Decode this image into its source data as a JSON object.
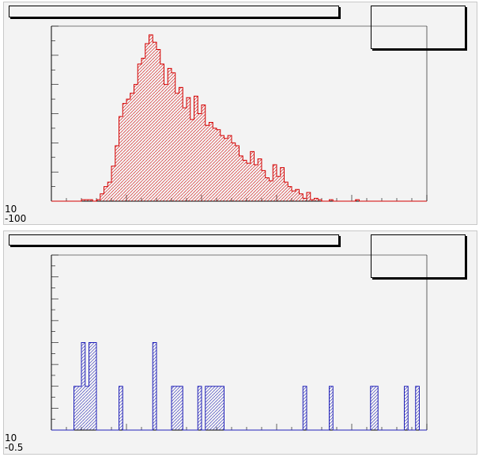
{
  "chart_data": [
    {
      "type": "histogram",
      "line_color": "#d40000",
      "fill": "hatched",
      "ylim": [
        0,
        120
      ],
      "bins": 100,
      "values": [
        0,
        0,
        0,
        0,
        0,
        0,
        0,
        0,
        1,
        1,
        1,
        0,
        1,
        5,
        10,
        13,
        24,
        38,
        58,
        67,
        70,
        74,
        80,
        94,
        98,
        108,
        114,
        109,
        104,
        94,
        80,
        91,
        88,
        74,
        78,
        64,
        71,
        56,
        72,
        60,
        66,
        52,
        54,
        50,
        49,
        45,
        43,
        45,
        40,
        38,
        31,
        28,
        26,
        34,
        25,
        29,
        21,
        16,
        14,
        25,
        17,
        23,
        13,
        10,
        7,
        8,
        5,
        2,
        6,
        1,
        2,
        1,
        0,
        0,
        1,
        0,
        0,
        0,
        0,
        0,
        0,
        1,
        0,
        0,
        0,
        0,
        0,
        0,
        0,
        0,
        0,
        0,
        0,
        0,
        0,
        0,
        0,
        0,
        0,
        0
      ],
      "tick_labels": [
        "10",
        "-100"
      ]
    },
    {
      "type": "histogram",
      "line_color": "#2020b8",
      "fill": "hatched",
      "ylim": [
        0,
        8
      ],
      "bins": 100,
      "values": [
        0,
        0,
        0,
        0,
        0,
        0,
        2,
        2,
        4,
        2,
        4,
        4,
        0,
        0,
        0,
        0,
        0,
        0,
        2,
        0,
        0,
        0,
        0,
        0,
        0,
        0,
        0,
        4,
        0,
        0,
        0,
        0,
        2,
        2,
        2,
        0,
        0,
        0,
        0,
        2,
        0,
        2,
        2,
        2,
        2,
        2,
        0,
        0,
        0,
        0,
        0,
        0,
        0,
        0,
        0,
        0,
        0,
        0,
        0,
        0,
        0,
        0,
        0,
        0,
        0,
        0,
        0,
        2,
        0,
        0,
        0,
        0,
        0,
        0,
        2,
        0,
        0,
        0,
        0,
        0,
        0,
        0,
        0,
        0,
        0,
        2,
        2,
        0,
        0,
        0,
        0,
        0,
        0,
        0,
        2,
        0,
        0,
        2,
        0,
        0
      ],
      "tick_labels": [
        "10",
        "-0.5"
      ]
    }
  ]
}
